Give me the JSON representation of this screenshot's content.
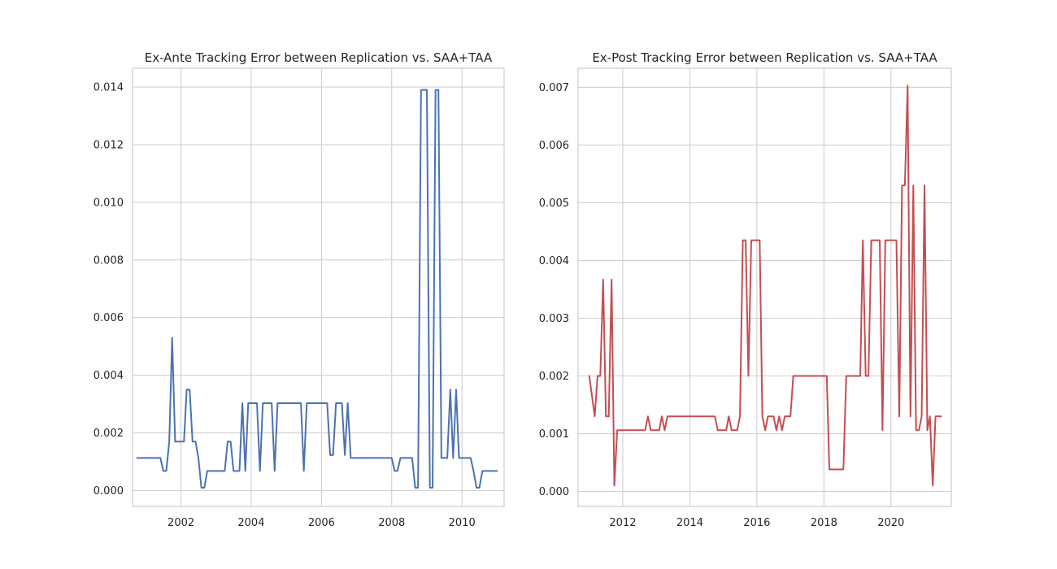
{
  "colors": {
    "background": "#ffffff",
    "grid": "#d0d0d0",
    "spine": "#cccccc",
    "text": "#262626"
  },
  "chart_data": [
    {
      "type": "line",
      "title": "Ex-Ante Tracking Error between Replication vs. SAA+TAA",
      "xlabel": "",
      "ylabel": "",
      "x_axis_type": "date",
      "xlim": [
        "2000-08-15",
        "2011-03-15"
      ],
      "ylim": [
        -0.00055,
        0.01465
      ],
      "x_ticks": [
        {
          "date": "2002-01-01",
          "label": "2002"
        },
        {
          "date": "2004-01-01",
          "label": "2004"
        },
        {
          "date": "2006-01-01",
          "label": "2006"
        },
        {
          "date": "2008-01-01",
          "label": "2008"
        },
        {
          "date": "2010-01-01",
          "label": "2010"
        }
      ],
      "y_ticks": [
        {
          "value": 0.0,
          "label": "0.000"
        },
        {
          "value": 0.002,
          "label": "0.002"
        },
        {
          "value": 0.004,
          "label": "0.004"
        },
        {
          "value": 0.006,
          "label": "0.006"
        },
        {
          "value": 0.008,
          "label": "0.008"
        },
        {
          "value": 0.01,
          "label": "0.010"
        },
        {
          "value": 0.012,
          "label": "0.012"
        },
        {
          "value": 0.014,
          "label": "0.014"
        }
      ],
      "grid": true,
      "series": [
        {
          "color": "#4c72b0",
          "points": [
            [
              "2000-10-01",
              0.00113
            ],
            [
              "2001-01-01",
              0.00113
            ],
            [
              "2001-04-01",
              0.00113
            ],
            [
              "2001-06-01",
              0.00113
            ],
            [
              "2001-07-01",
              0.00068
            ],
            [
              "2001-08-01",
              0.00068
            ],
            [
              "2001-09-01",
              0.0017
            ],
            [
              "2001-10-01",
              0.0053
            ],
            [
              "2001-11-01",
              0.0017
            ],
            [
              "2002-01-01",
              0.0017
            ],
            [
              "2002-02-01",
              0.0017
            ],
            [
              "2002-03-01",
              0.0035
            ],
            [
              "2002-04-01",
              0.0035
            ],
            [
              "2002-05-01",
              0.0017
            ],
            [
              "2002-06-01",
              0.0017
            ],
            [
              "2002-07-01",
              0.00113
            ],
            [
              "2002-08-01",
              0.0001
            ],
            [
              "2002-09-01",
              0.0001
            ],
            [
              "2002-10-01",
              0.00068
            ],
            [
              "2003-01-01",
              0.00068
            ],
            [
              "2003-04-01",
              0.00068
            ],
            [
              "2003-05-01",
              0.0017
            ],
            [
              "2003-06-01",
              0.0017
            ],
            [
              "2003-07-01",
              0.00068
            ],
            [
              "2003-09-01",
              0.00068
            ],
            [
              "2003-10-01",
              0.00303
            ],
            [
              "2003-11-01",
              0.00068
            ],
            [
              "2003-12-01",
              0.00303
            ],
            [
              "2004-03-01",
              0.00303
            ],
            [
              "2004-04-01",
              0.00068
            ],
            [
              "2004-05-01",
              0.00303
            ],
            [
              "2004-08-01",
              0.00303
            ],
            [
              "2004-09-01",
              0.00068
            ],
            [
              "2004-10-01",
              0.00303
            ],
            [
              "2005-01-01",
              0.00303
            ],
            [
              "2005-06-01",
              0.00303
            ],
            [
              "2005-07-01",
              0.00068
            ],
            [
              "2005-08-01",
              0.00303
            ],
            [
              "2006-01-01",
              0.00303
            ],
            [
              "2006-03-01",
              0.00303
            ],
            [
              "2006-04-01",
              0.00123
            ],
            [
              "2006-05-01",
              0.00123
            ],
            [
              "2006-06-01",
              0.00303
            ],
            [
              "2006-08-01",
              0.00303
            ],
            [
              "2006-09-01",
              0.00123
            ],
            [
              "2006-10-01",
              0.00303
            ],
            [
              "2006-11-01",
              0.00113
            ],
            [
              "2007-01-01",
              0.00113
            ],
            [
              "2007-06-01",
              0.00113
            ],
            [
              "2008-01-01",
              0.00113
            ],
            [
              "2008-02-01",
              0.00068
            ],
            [
              "2008-03-01",
              0.00068
            ],
            [
              "2008-04-01",
              0.00113
            ],
            [
              "2008-08-01",
              0.00113
            ],
            [
              "2008-09-01",
              0.0001
            ],
            [
              "2008-10-01",
              0.0001
            ],
            [
              "2008-11-01",
              0.0139
            ],
            [
              "2009-01-01",
              0.0139
            ],
            [
              "2009-02-01",
              0.0001
            ],
            [
              "2009-03-01",
              0.0001
            ],
            [
              "2009-04-01",
              0.0139
            ],
            [
              "2009-05-01",
              0.0139
            ],
            [
              "2009-06-01",
              0.00113
            ],
            [
              "2009-07-01",
              0.00113
            ],
            [
              "2009-08-01",
              0.00113
            ],
            [
              "2009-09-01",
              0.0035
            ],
            [
              "2009-10-01",
              0.00113
            ],
            [
              "2009-11-01",
              0.0035
            ],
            [
              "2009-12-01",
              0.00113
            ],
            [
              "2010-01-01",
              0.00113
            ],
            [
              "2010-04-01",
              0.00113
            ],
            [
              "2010-05-01",
              0.00068
            ],
            [
              "2010-06-01",
              0.0001
            ],
            [
              "2010-07-01",
              0.0001
            ],
            [
              "2010-08-01",
              0.00068
            ],
            [
              "2010-11-01",
              0.00068
            ],
            [
              "2011-01-01",
              0.00068
            ]
          ]
        }
      ]
    },
    {
      "type": "line",
      "title": "Ex-Post Tracking Error between Replication vs. SAA+TAA",
      "xlabel": "",
      "ylabel": "",
      "x_axis_type": "date",
      "xlim": [
        "2010-09-01",
        "2021-10-20"
      ],
      "ylim": [
        -0.00026,
        0.00733
      ],
      "x_ticks": [
        {
          "date": "2012-01-01",
          "label": "2012"
        },
        {
          "date": "2014-01-01",
          "label": "2014"
        },
        {
          "date": "2016-01-01",
          "label": "2016"
        },
        {
          "date": "2018-01-01",
          "label": "2018"
        },
        {
          "date": "2020-01-01",
          "label": "2020"
        }
      ],
      "y_ticks": [
        {
          "value": 0.0,
          "label": "0.000"
        },
        {
          "value": 0.001,
          "label": "0.001"
        },
        {
          "value": 0.002,
          "label": "0.002"
        },
        {
          "value": 0.003,
          "label": "0.003"
        },
        {
          "value": 0.004,
          "label": "0.004"
        },
        {
          "value": 0.005,
          "label": "0.005"
        },
        {
          "value": 0.006,
          "label": "0.006"
        },
        {
          "value": 0.007,
          "label": "0.007"
        }
      ],
      "grid": true,
      "series": [
        {
          "color": "#c44e52",
          "points": [
            [
              "2011-01-01",
              0.002
            ],
            [
              "2011-03-01",
              0.0013
            ],
            [
              "2011-04-01",
              0.002
            ],
            [
              "2011-05-01",
              0.002
            ],
            [
              "2011-06-01",
              0.00367
            ],
            [
              "2011-07-01",
              0.0013
            ],
            [
              "2011-08-01",
              0.0013
            ],
            [
              "2011-09-01",
              0.00367
            ],
            [
              "2011-10-01",
              0.0001
            ],
            [
              "2011-11-01",
              0.00106
            ],
            [
              "2012-01-01",
              0.00106
            ],
            [
              "2012-06-01",
              0.00106
            ],
            [
              "2012-09-01",
              0.00106
            ],
            [
              "2012-10-01",
              0.0013
            ],
            [
              "2012-11-01",
              0.00106
            ],
            [
              "2013-01-01",
              0.00106
            ],
            [
              "2013-02-01",
              0.00106
            ],
            [
              "2013-03-01",
              0.0013
            ],
            [
              "2013-04-01",
              0.00106
            ],
            [
              "2013-05-01",
              0.0013
            ],
            [
              "2014-01-01",
              0.0013
            ],
            [
              "2014-06-01",
              0.0013
            ],
            [
              "2014-10-01",
              0.0013
            ],
            [
              "2014-11-01",
              0.00106
            ],
            [
              "2015-02-01",
              0.00106
            ],
            [
              "2015-03-01",
              0.0013
            ],
            [
              "2015-04-01",
              0.00106
            ],
            [
              "2015-06-01",
              0.00106
            ],
            [
              "2015-07-01",
              0.0013
            ],
            [
              "2015-08-01",
              0.00435
            ],
            [
              "2015-09-01",
              0.00435
            ],
            [
              "2015-10-01",
              0.002
            ],
            [
              "2015-11-01",
              0.00435
            ],
            [
              "2016-01-01",
              0.00435
            ],
            [
              "2016-02-01",
              0.00435
            ],
            [
              "2016-03-01",
              0.0013
            ],
            [
              "2016-04-01",
              0.00106
            ],
            [
              "2016-05-01",
              0.0013
            ],
            [
              "2016-07-01",
              0.0013
            ],
            [
              "2016-08-01",
              0.00106
            ],
            [
              "2016-09-01",
              0.0013
            ],
            [
              "2016-10-01",
              0.00106
            ],
            [
              "2016-11-01",
              0.0013
            ],
            [
              "2017-01-01",
              0.0013
            ],
            [
              "2017-02-01",
              0.002
            ],
            [
              "2018-01-01",
              0.002
            ],
            [
              "2018-02-01",
              0.002
            ],
            [
              "2018-03-01",
              0.00038
            ],
            [
              "2018-06-01",
              0.00038
            ],
            [
              "2018-08-01",
              0.00038
            ],
            [
              "2018-09-01",
              0.002
            ],
            [
              "2019-01-01",
              0.002
            ],
            [
              "2019-02-01",
              0.002
            ],
            [
              "2019-03-01",
              0.00435
            ],
            [
              "2019-04-01",
              0.002
            ],
            [
              "2019-05-01",
              0.002
            ],
            [
              "2019-06-01",
              0.00435
            ],
            [
              "2019-09-01",
              0.00435
            ],
            [
              "2019-10-01",
              0.00106
            ],
            [
              "2019-11-01",
              0.00435
            ],
            [
              "2020-01-01",
              0.00435
            ],
            [
              "2020-03-01",
              0.00435
            ],
            [
              "2020-04-01",
              0.0013
            ],
            [
              "2020-05-01",
              0.0053
            ],
            [
              "2020-06-01",
              0.0053
            ],
            [
              "2020-07-01",
              0.00703
            ],
            [
              "2020-08-01",
              0.0013
            ],
            [
              "2020-09-01",
              0.0053
            ],
            [
              "2020-10-01",
              0.00106
            ],
            [
              "2020-11-01",
              0.00106
            ],
            [
              "2020-12-01",
              0.0013
            ],
            [
              "2021-01-01",
              0.0053
            ],
            [
              "2021-02-01",
              0.00106
            ],
            [
              "2021-03-01",
              0.0013
            ],
            [
              "2021-04-01",
              0.0001
            ],
            [
              "2021-05-01",
              0.0013
            ],
            [
              "2021-07-01",
              0.0013
            ]
          ]
        }
      ]
    }
  ]
}
